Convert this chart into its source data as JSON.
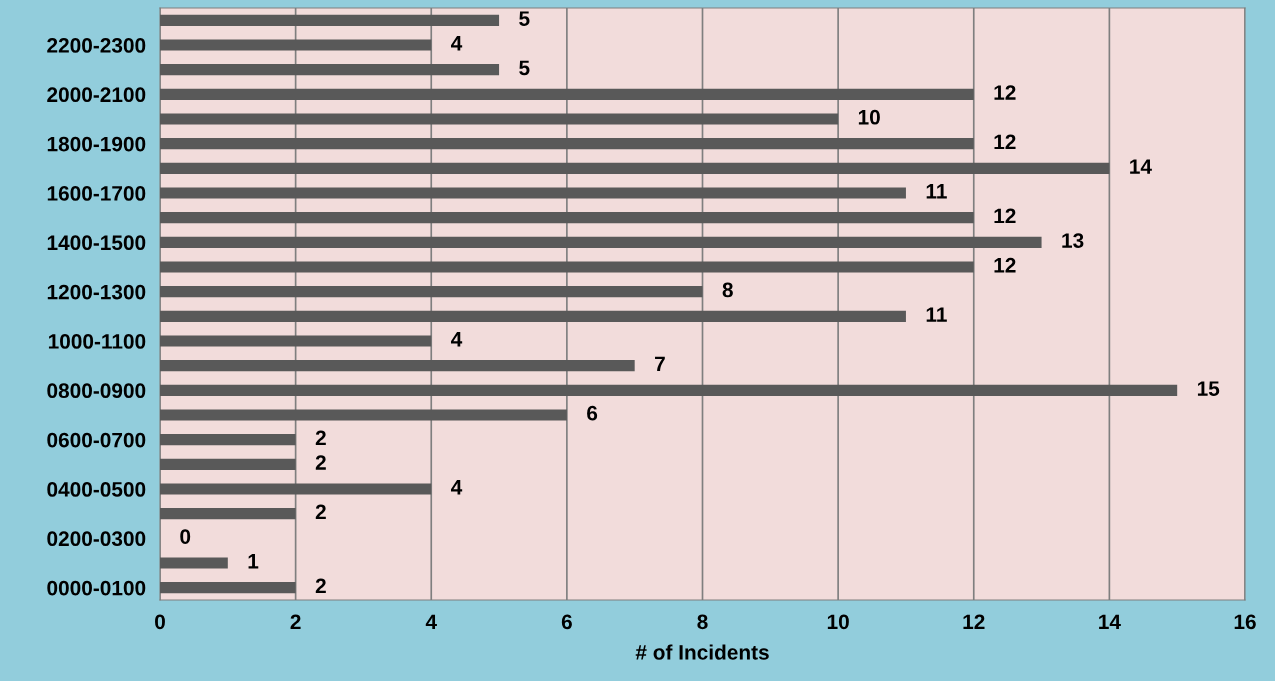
{
  "chart_data": {
    "type": "bar",
    "orientation": "horizontal",
    "xlabel": "# of Incidents",
    "categories": [
      null,
      "2200-2300",
      null,
      "2000-2100",
      null,
      "1800-1900",
      null,
      "1600-1700",
      null,
      "1400-1500",
      null,
      "1200-1300",
      null,
      "1000-1100",
      null,
      "0800-0900",
      null,
      "0600-0700",
      null,
      "0400-0500",
      null,
      "0200-0300",
      null,
      "0000-0100"
    ],
    "values": [
      5,
      4,
      5,
      12,
      10,
      12,
      14,
      11,
      12,
      13,
      12,
      8,
      11,
      4,
      7,
      15,
      6,
      2,
      2,
      4,
      2,
      0,
      1,
      2
    ],
    "color": "#595959",
    "xlim": [
      0,
      16
    ],
    "xticks": [
      0,
      2,
      4,
      6,
      8,
      10,
      12,
      14,
      16
    ],
    "grid": "x",
    "data_labels": true,
    "legend": false
  }
}
